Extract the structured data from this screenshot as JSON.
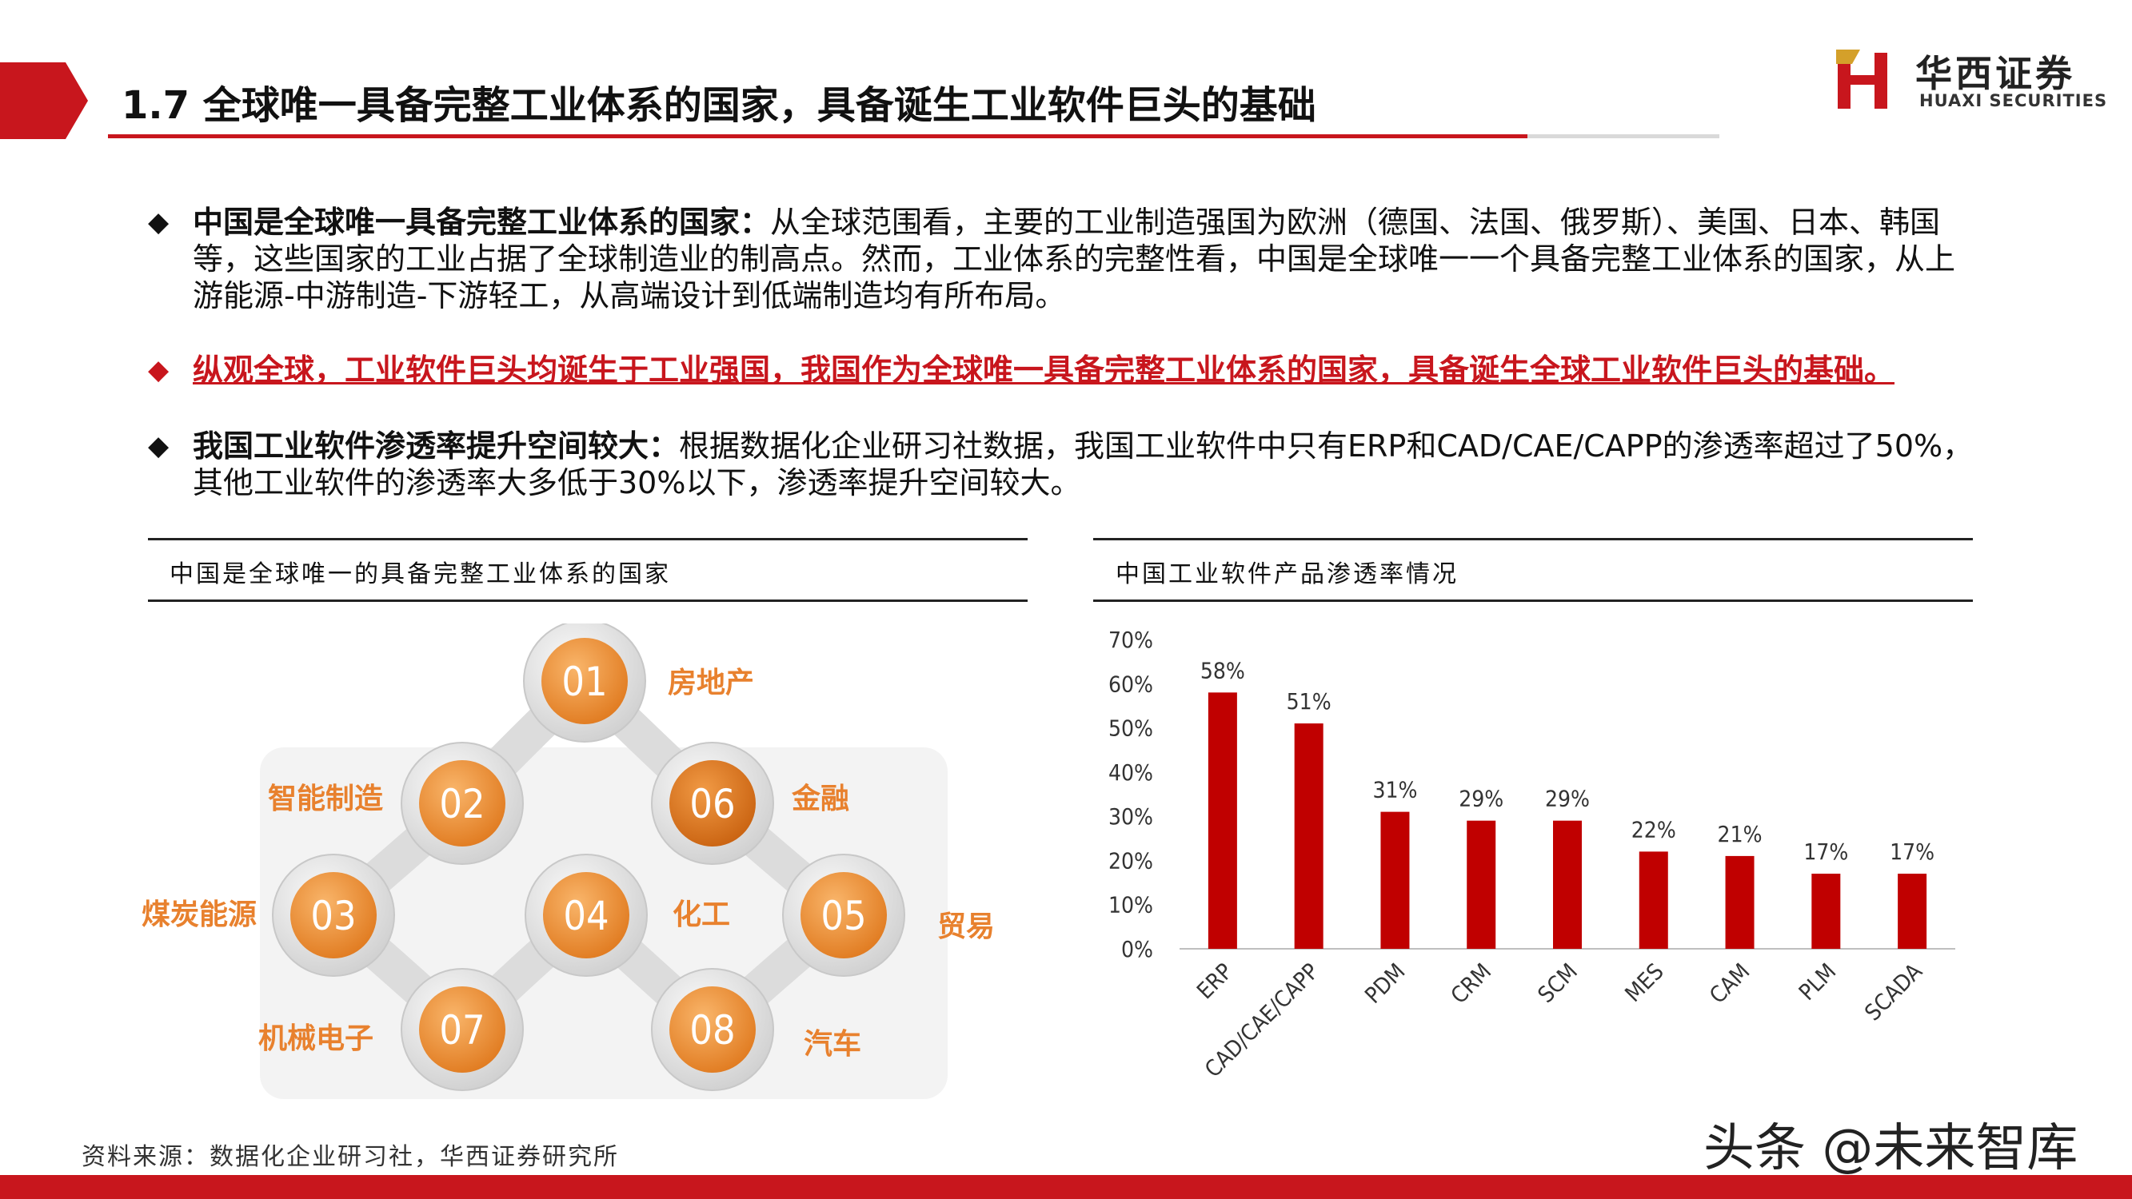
{
  "header": {
    "title": "1.7 全球唯一具备完整工业体系的国家，具备诞生工业软件巨头的基础"
  },
  "logo": {
    "cn": "华西证券",
    "en": "HUAXI SECURITIES"
  },
  "bullets": [
    {
      "bold": "中国是全球唯一具备完整工业体系的国家：",
      "text": "从全球范围看，主要的工业制造强国为欧洲（德国、法国、俄罗斯）、美国、日本、韩国等，这些国家的工业占据了全球制造业的制高点。然而，工业体系的完整性看，中国是全球唯一一个具备完整工业体系的国家，从上游能源-中游制造-下游轻工，从高端设计到低端制造均有所布局。"
    },
    {
      "bold": "",
      "text": "纵观全球，工业软件巨头均诞生于工业强国，我国作为全球唯一具备完整工业体系的国家，具备诞生全球工业软件巨头的基础。"
    },
    {
      "bold": "我国工业软件渗透率提升空间较大：",
      "text": "根据数据化企业研习社数据，我国工业软件中只有ERP和CAD/CAE/CAPP的渗透率超过了50%，其他工业软件的渗透率大多低于30%以下，渗透率提升空间较大。"
    }
  ],
  "left_panel": {
    "title": "中国是全球唯一的具备完整工业体系的国家",
    "nodes": [
      {
        "num": "01",
        "label": "房地产"
      },
      {
        "num": "02",
        "label": "智能制造"
      },
      {
        "num": "03",
        "label": "煤炭能源"
      },
      {
        "num": "04",
        "label": "化工"
      },
      {
        "num": "05",
        "label": "贸易"
      },
      {
        "num": "06",
        "label": "金融"
      },
      {
        "num": "07",
        "label": "机械电子"
      },
      {
        "num": "08",
        "label": "汽车"
      }
    ],
    "colors": {
      "orange_dark": "#e07a1f",
      "orange_light": "#f4a860",
      "ring": "#d9d9d9",
      "label": "#e8812e"
    }
  },
  "right_panel": {
    "title": "中国工业软件产品渗透率情况"
  },
  "chart_data": {
    "type": "bar",
    "categories": [
      "ERP",
      "CAD/CAE/CAPP",
      "PDM",
      "CRM",
      "SCM",
      "MES",
      "CAM",
      "PLM",
      "SCADA"
    ],
    "values": [
      58,
      51,
      31,
      29,
      29,
      22,
      21,
      17,
      17
    ],
    "data_labels": [
      "58%",
      "51%",
      "31%",
      "29%",
      "29%",
      "22%",
      "21%",
      "17%",
      "17%"
    ],
    "yticks": [
      "0%",
      "10%",
      "20%",
      "30%",
      "40%",
      "50%",
      "60%",
      "70%"
    ],
    "ylim": [
      0,
      70
    ],
    "unit": "%",
    "grid": false,
    "bar_color": "#c00000"
  },
  "footer": {
    "source": "资料来源：数据化企业研习社，华西证券研究所",
    "watermark": "头条 @未来智库"
  }
}
